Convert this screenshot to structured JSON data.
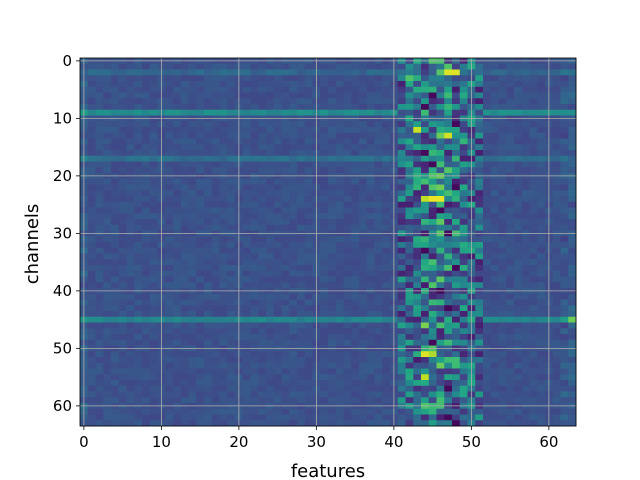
{
  "chart_data": {
    "type": "heatmap",
    "title": "",
    "xlabel": "features",
    "ylabel": "channels",
    "n_features": 64,
    "n_channels": 64,
    "xlim": [
      -0.5,
      63.5
    ],
    "ylim": [
      63.5,
      -0.5
    ],
    "y_inverted": true,
    "xticks": [
      0,
      10,
      20,
      30,
      40,
      50,
      60
    ],
    "yticks": [
      0,
      10,
      20,
      30,
      40,
      50,
      60
    ],
    "grid": true,
    "colormap": "viridis",
    "value_range": [
      0,
      1
    ],
    "background_level": 0.25,
    "active_feature_band": [
      41,
      51
    ],
    "bright_rows": [
      {
        "channel": 9,
        "level": 0.48
      },
      {
        "channel": 45,
        "level": 0.45
      },
      {
        "channel": 17,
        "level": 0.36
      },
      {
        "channel": 2,
        "level": 0.33
      }
    ],
    "hot_cells": [
      {
        "channel": 2,
        "feature": 47,
        "value": 0.95
      },
      {
        "channel": 2,
        "feature": 48,
        "value": 0.95
      },
      {
        "channel": 12,
        "feature": 43,
        "value": 0.92
      },
      {
        "channel": 13,
        "feature": 47,
        "value": 0.93
      },
      {
        "channel": 24,
        "feature": 44,
        "value": 0.9
      },
      {
        "channel": 24,
        "feature": 45,
        "value": 0.97
      },
      {
        "channel": 24,
        "feature": 46,
        "value": 0.97
      },
      {
        "channel": 51,
        "feature": 44,
        "value": 0.95
      },
      {
        "channel": 51,
        "feature": 45,
        "value": 0.88
      },
      {
        "channel": 55,
        "feature": 44,
        "value": 0.9
      },
      {
        "channel": 45,
        "feature": 63,
        "value": 0.78
      },
      {
        "channel": 46,
        "feature": 44,
        "value": 0.8
      },
      {
        "channel": 3,
        "feature": 42,
        "value": 0.72
      },
      {
        "channel": 28,
        "feature": 46,
        "value": 0.75
      },
      {
        "channel": 60,
        "feature": 44,
        "value": 0.72
      }
    ],
    "dark_cells": [
      {
        "channel": 6,
        "feature": 45
      },
      {
        "channel": 8,
        "feature": 44
      },
      {
        "channel": 11,
        "feature": 48
      },
      {
        "channel": 16,
        "feature": 44
      },
      {
        "channel": 18,
        "feature": 45
      },
      {
        "channel": 22,
        "feature": 48
      },
      {
        "channel": 26,
        "feature": 46
      },
      {
        "channel": 30,
        "feature": 47
      },
      {
        "channel": 33,
        "feature": 44
      },
      {
        "channel": 36,
        "feature": 48
      },
      {
        "channel": 40,
        "feature": 46
      },
      {
        "channel": 43,
        "feature": 47
      },
      {
        "channel": 49,
        "feature": 45
      },
      {
        "channel": 57,
        "feature": 47
      },
      {
        "channel": 62,
        "feature": 47
      },
      {
        "channel": 63,
        "feature": 48
      }
    ]
  }
}
